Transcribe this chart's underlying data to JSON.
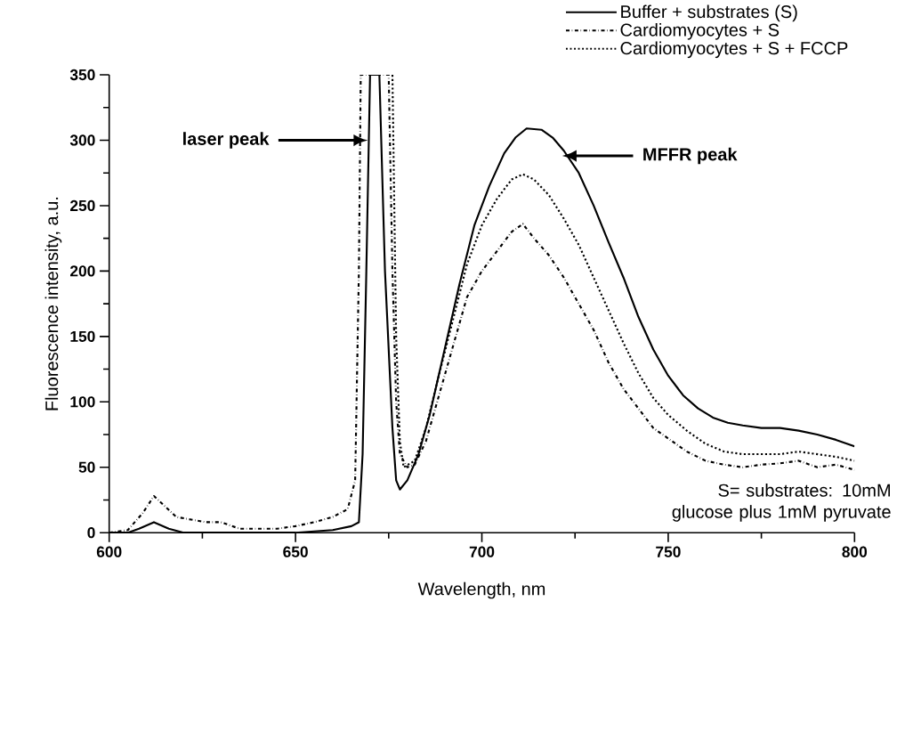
{
  "chart_data": {
    "type": "line",
    "xlabel": "Wavelength, nm",
    "ylabel": "Fluorescence intensity, a.u.",
    "xlim": [
      600,
      800
    ],
    "ylim": [
      0,
      350
    ],
    "xticks": [
      600,
      650,
      700,
      750,
      800
    ],
    "yticks": [
      0,
      50,
      100,
      150,
      200,
      250,
      300,
      350
    ],
    "legend": "top right",
    "grid": false,
    "series": [
      {
        "name": "Buffer + substrates (S)",
        "color": "#000000",
        "line_style": "solid",
        "x": [
          600,
          605,
          608,
          612,
          616,
          620,
          630,
          640,
          650,
          660,
          665,
          667,
          668,
          669,
          670,
          672.5,
          674,
          676,
          677,
          678,
          680,
          683,
          686,
          690,
          694,
          698,
          702,
          706,
          709,
          712,
          716,
          719,
          722,
          726,
          730,
          734,
          738,
          742,
          746,
          750,
          754,
          758,
          762,
          766,
          770,
          775,
          780,
          785,
          790,
          795,
          800
        ],
        "values": [
          0,
          0,
          3,
          8,
          3,
          0,
          0,
          0,
          0,
          2,
          5,
          8,
          60,
          200,
          350,
          350,
          200,
          80,
          40,
          33,
          40,
          60,
          90,
          140,
          190,
          235,
          265,
          290,
          302,
          309,
          308,
          302,
          292,
          275,
          250,
          222,
          195,
          165,
          140,
          120,
          105,
          95,
          88,
          84,
          82,
          80,
          80,
          78,
          75,
          71,
          66
        ]
      },
      {
        "name": "Cardiomyocytes + S",
        "color": "#000000",
        "line_style": "dashdot",
        "x": [
          600,
          605,
          609,
          612,
          615,
          618,
          622,
          626,
          630,
          635,
          640,
          645,
          650,
          655,
          660,
          664,
          666,
          667,
          667.5,
          675,
          676,
          677,
          678,
          680,
          682,
          685,
          688,
          692,
          696,
          700,
          704,
          708,
          711,
          714,
          718,
          722,
          726,
          730,
          734,
          738,
          742,
          746,
          750,
          755,
          760,
          765,
          770,
          775,
          780,
          785,
          790,
          795,
          800
        ],
        "values": [
          0,
          2,
          15,
          28,
          20,
          12,
          10,
          8,
          8,
          3,
          3,
          3,
          5,
          8,
          12,
          18,
          40,
          200,
          350,
          350,
          200,
          100,
          60,
          50,
          52,
          70,
          100,
          140,
          180,
          200,
          215,
          230,
          236,
          225,
          212,
          195,
          175,
          155,
          130,
          110,
          95,
          80,
          72,
          62,
          55,
          52,
          50,
          52,
          53,
          55,
          50,
          52,
          48
        ]
      },
      {
        "name": "Cardiomyocytes + S +  FCCP",
        "color": "#000000",
        "line_style": "dotted",
        "x": [
          676,
          677,
          678,
          679,
          682,
          685,
          688,
          692,
          696,
          700,
          704,
          708,
          711,
          714,
          718,
          722,
          726,
          730,
          734,
          738,
          742,
          746,
          750,
          755,
          760,
          765,
          770,
          775,
          780,
          785,
          790,
          795,
          800
        ],
        "values": [
          350,
          150,
          70,
          50,
          55,
          80,
          115,
          160,
          205,
          235,
          255,
          270,
          274,
          270,
          258,
          240,
          220,
          195,
          170,
          145,
          122,
          103,
          90,
          78,
          68,
          62,
          60,
          60,
          60,
          62,
          60,
          58,
          55
        ]
      }
    ],
    "annotations": [
      "laser peak",
      "MFFR peak",
      "S= substrates: 10mM glucose plus 1mM pyruvate"
    ]
  }
}
